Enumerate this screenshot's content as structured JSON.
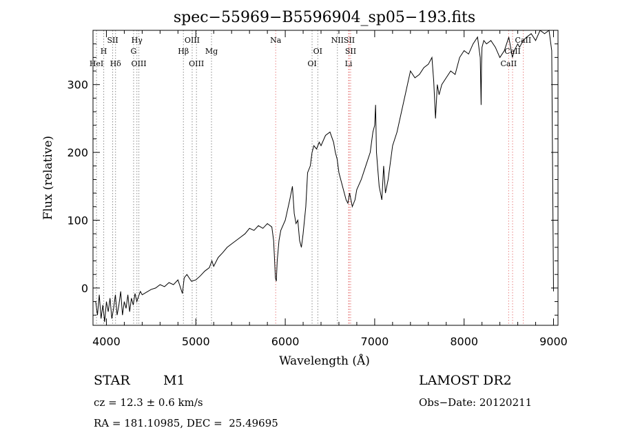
{
  "chart_data": {
    "type": "line",
    "title": "spec−55969−B5596904_sp05−193.fits",
    "xlabel": "Wavelength (Å)",
    "ylabel": "Flux (relative)",
    "xlim": [
      3850,
      9050
    ],
    "ylim": [
      -55,
      380
    ],
    "xticks": [
      4000,
      5000,
      6000,
      7000,
      8000,
      9000
    ],
    "xtick_labels": [
      "4000",
      "5000",
      "6000",
      "7000",
      "8000",
      "9000"
    ],
    "yticks": [
      0,
      100,
      200,
      300
    ],
    "ytick_labels": [
      "0",
      "100",
      "200",
      "300"
    ],
    "grid": false,
    "series": [
      {
        "x": [
          3880,
          3900,
          3920,
          3940,
          3960,
          3980,
          4000,
          4020,
          4040,
          4060,
          4080,
          4100,
          4120,
          4140,
          4160,
          4180,
          4200,
          4220,
          4240,
          4260,
          4280,
          4300,
          4320,
          4340,
          4360,
          4380,
          4400,
          4450,
          4500,
          4550,
          4600,
          4650,
          4700,
          4750,
          4800,
          4850,
          4870,
          4900,
          4950,
          5000,
          5050,
          5100,
          5150,
          5180,
          5200,
          5250,
          5300,
          5350,
          5400,
          5450,
          5500,
          5550,
          5600,
          5650,
          5700,
          5750,
          5800,
          5850,
          5870,
          5890,
          5900,
          5910,
          5930,
          5950,
          6000,
          6050,
          6080,
          6100,
          6120,
          6140,
          6160,
          6180,
          6200,
          6230,
          6250,
          6280,
          6300,
          6320,
          6350,
          6380,
          6400,
          6450,
          6500,
          6540,
          6560,
          6580,
          6600,
          6620,
          6650,
          6680,
          6700,
          6720,
          6750,
          6780,
          6800,
          6850,
          6900,
          6950,
          6980,
          7000,
          7010,
          7020,
          7050,
          7080,
          7100,
          7120,
          7150,
          7200,
          7250,
          7300,
          7350,
          7400,
          7450,
          7500,
          7550,
          7600,
          7640,
          7660,
          7680,
          7700,
          7720,
          7750,
          7800,
          7850,
          7900,
          7950,
          8000,
          8050,
          8100,
          8150,
          8180,
          8190,
          8195,
          8200,
          8220,
          8250,
          8300,
          8350,
          8400,
          8450,
          8500,
          8540,
          8560,
          8600,
          8620,
          8660,
          8700,
          8750,
          8800,
          8850,
          8900,
          8950,
          8980,
          8990,
          9000
        ],
        "y": [
          -20,
          -40,
          -10,
          -45,
          -25,
          -50,
          -20,
          -35,
          -15,
          -45,
          -30,
          -10,
          -40,
          -25,
          -5,
          -40,
          -20,
          -30,
          -10,
          -35,
          -15,
          -25,
          -8,
          -20,
          -12,
          -5,
          -10,
          -6,
          -2,
          0,
          5,
          2,
          8,
          5,
          12,
          -8,
          15,
          20,
          10,
          12,
          18,
          25,
          30,
          40,
          32,
          45,
          52,
          60,
          65,
          70,
          75,
          80,
          88,
          85,
          92,
          88,
          95,
          90,
          70,
          15,
          10,
          40,
          70,
          85,
          100,
          130,
          150,
          110,
          95,
          100,
          70,
          60,
          80,
          120,
          170,
          180,
          200,
          210,
          205,
          215,
          210,
          225,
          230,
          215,
          200,
          190,
          170,
          160,
          145,
          130,
          125,
          140,
          120,
          130,
          145,
          160,
          180,
          200,
          230,
          240,
          270,
          200,
          150,
          130,
          180,
          140,
          160,
          210,
          230,
          260,
          290,
          320,
          310,
          315,
          325,
          330,
          340,
          305,
          250,
          300,
          285,
          300,
          310,
          320,
          315,
          340,
          350,
          345,
          360,
          370,
          340,
          270,
          330,
          355,
          365,
          360,
          365,
          355,
          340,
          350,
          370,
          340,
          350,
          360,
          355,
          365,
          370,
          375,
          365,
          380,
          375,
          380,
          350,
          170,
          -5
        ]
      }
    ],
    "spectral_lines": [
      {
        "name": "HeI",
        "wavelength": 3889,
        "color": "#888888"
      },
      {
        "name": "H",
        "wavelength": 3970,
        "color": "#888888"
      },
      {
        "name": "SII",
        "wavelength": 4070,
        "color": "#888888"
      },
      {
        "name": "Hδ",
        "wavelength": 4102,
        "color": "#888888"
      },
      {
        "name": "Hγ",
        "wavelength": 4341,
        "color": "#888888"
      },
      {
        "name": "G",
        "wavelength": 4304,
        "color": "#888888"
      },
      {
        "name": "OIII",
        "wavelength": 4363,
        "color": "#888888"
      },
      {
        "name": "Hβ",
        "wavelength": 4861,
        "color": "#888888"
      },
      {
        "name": "OIII",
        "wavelength": 4959,
        "color": "#888888"
      },
      {
        "name": "OIII",
        "wavelength": 5007,
        "color": "#888888"
      },
      {
        "name": "Mg",
        "wavelength": 5175,
        "color": "#888888"
      },
      {
        "name": "Na",
        "wavelength": 5893,
        "color": "#e88080"
      },
      {
        "name": "OI",
        "wavelength": 6300,
        "color": "#888888"
      },
      {
        "name": "OI",
        "wavelength": 6364,
        "color": "#888888"
      },
      {
        "name": "NII",
        "wavelength": 6583,
        "color": "#888888"
      },
      {
        "name": "SII",
        "wavelength": 6716,
        "color": "#e88080"
      },
      {
        "name": "SII",
        "wavelength": 6731,
        "color": "#e88080"
      },
      {
        "name": "Li",
        "wavelength": 6708,
        "color": "#e88080"
      },
      {
        "name": "CaII",
        "wavelength": 8498,
        "color": "#e88080"
      },
      {
        "name": "CaII",
        "wavelength": 8542,
        "color": "#e88080"
      },
      {
        "name": "CaII",
        "wavelength": 8662,
        "color": "#e88080"
      }
    ],
    "line_labels": [
      {
        "text": "HeI",
        "wavelength": 3889,
        "row": 3
      },
      {
        "text": "H",
        "wavelength": 3970,
        "row": 2
      },
      {
        "text": "SII",
        "wavelength": 4070,
        "row": 1
      },
      {
        "text": "Hδ",
        "wavelength": 4102,
        "row": 3
      },
      {
        "text": "Hγ",
        "wavelength": 4341,
        "row": 1
      },
      {
        "text": "G",
        "wavelength": 4304,
        "row": 2
      },
      {
        "text": "OIII",
        "wavelength": 4363,
        "row": 3
      },
      {
        "text": "Hβ",
        "wavelength": 4861,
        "row": 2
      },
      {
        "text": "OIII",
        "wavelength": 4959,
        "row": 1
      },
      {
        "text": "OIII",
        "wavelength": 5007,
        "row": 3
      },
      {
        "text": "Mg",
        "wavelength": 5175,
        "row": 2
      },
      {
        "text": "Na",
        "wavelength": 5893,
        "row": 1
      },
      {
        "text": "OI",
        "wavelength": 6364,
        "row": 2
      },
      {
        "text": "OI",
        "wavelength": 6300,
        "row": 3
      },
      {
        "text": "NII",
        "wavelength": 6583,
        "row": 1
      },
      {
        "text": "SII",
        "wavelength": 6716,
        "row": 1
      },
      {
        "text": "SII",
        "wavelength": 6731,
        "row": 2
      },
      {
        "text": "Li",
        "wavelength": 6708,
        "row": 3
      },
      {
        "text": "CaII",
        "wavelength": 8660,
        "row": 1
      },
      {
        "text": "CaII",
        "wavelength": 8542,
        "row": 2
      },
      {
        "text": "CaII",
        "wavelength": 8498,
        "row": 3
      }
    ]
  },
  "info": {
    "class": "STAR",
    "subclass": "M1",
    "cz": "cz = 12.3 ± 0.6 km/s",
    "coords": "RA = 181.10985, DEC =  25.49695",
    "survey": "LAMOST DR2",
    "obs_date": "Obs−Date: 20120211"
  }
}
